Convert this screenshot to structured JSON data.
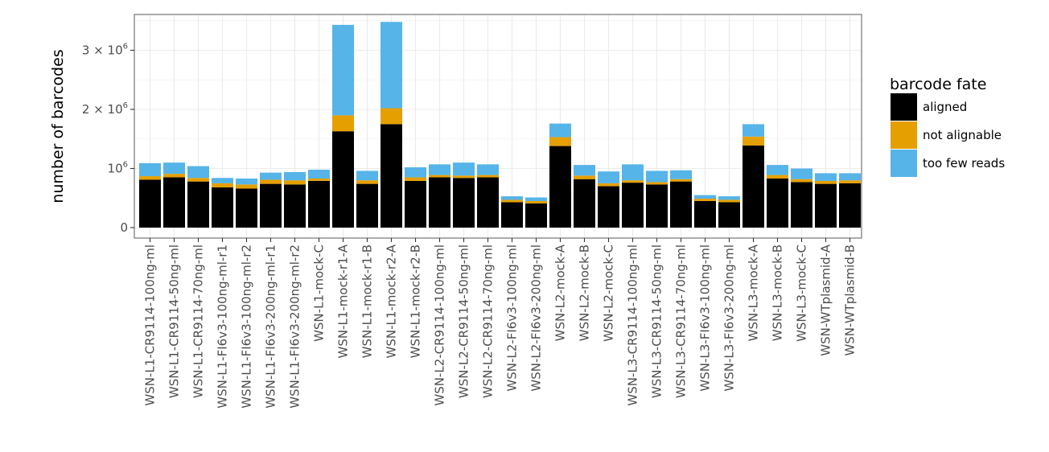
{
  "chart_data": {
    "type": "bar",
    "stacked": true,
    "title": "",
    "xlabel": "",
    "ylabel": "number of barcodes",
    "ylim": [
      0,
      3650000
    ],
    "grid": true,
    "y_ticks": [
      {
        "value": 0,
        "label": "0",
        "exp": ""
      },
      {
        "value": 1000000,
        "label": "10",
        "exp": "6"
      },
      {
        "value": 2000000,
        "label": "2 × 10",
        "exp": "6"
      },
      {
        "value": 3000000,
        "label": "3 × 10",
        "exp": "6"
      }
    ],
    "legend": {
      "title": "barcode fate",
      "position": "right",
      "entries": [
        {
          "label": "aligned",
          "color": "#000000"
        },
        {
          "label": "not alignable",
          "color": "#E69F00"
        },
        {
          "label": "too few reads",
          "color": "#56B4E9"
        }
      ]
    },
    "categories": [
      "WSN-L1-CR9114-100ng-ml",
      "WSN-L1-CR9114-50ng-ml",
      "WSN-L1-CR9114-70ng-ml",
      "WSN-L1-FI6v3-100ng-ml-r1",
      "WSN-L1-FI6v3-100ng-ml-r2",
      "WSN-L1-FI6v3-200ng-ml-r1",
      "WSN-L1-FI6v3-200ng-ml-r2",
      "WSN-L1-mock-C",
      "WSN-L1-mock-r1-A",
      "WSN-L1-mock-r1-B",
      "WSN-L1-mock-r2-A",
      "WSN-L1-mock-r2-B",
      "WSN-L2-CR9114-100ng-ml",
      "WSN-L2-CR9114-50ng-ml",
      "WSN-L2-CR9114-70ng-ml",
      "WSN-L2-FI6v3-100ng-ml",
      "WSN-L2-FI6v3-200ng-ml",
      "WSN-L2-mock-A",
      "WSN-L2-mock-B",
      "WSN-L2-mock-C",
      "WSN-L3-CR9114-100ng-ml",
      "WSN-L3-CR9114-50ng-ml",
      "WSN-L3-CR9114-70ng-ml",
      "WSN-L3-FI6v3-100ng-ml",
      "WSN-L3-FI6v3-200ng-ml",
      "WSN-L3-mock-A",
      "WSN-L3-mock-B",
      "WSN-L3-mock-C",
      "WSN-WTplasmid-A",
      "WSN-WTplasmid-B"
    ],
    "series": [
      {
        "name": "aligned",
        "color": "#000000",
        "values": [
          810000,
          850000,
          780000,
          680000,
          660000,
          740000,
          730000,
          790000,
          1630000,
          740000,
          1750000,
          790000,
          850000,
          840000,
          850000,
          430000,
          410000,
          1380000,
          820000,
          700000,
          760000,
          730000,
          780000,
          450000,
          430000,
          1390000,
          830000,
          770000,
          740000,
          750000
        ]
      },
      {
        "name": "not alignable",
        "color": "#E69F00",
        "values": [
          60000,
          60000,
          60000,
          70000,
          70000,
          70000,
          70000,
          40000,
          270000,
          60000,
          270000,
          60000,
          40000,
          40000,
          40000,
          40000,
          40000,
          150000,
          60000,
          50000,
          40000,
          40000,
          40000,
          40000,
          40000,
          150000,
          60000,
          50000,
          50000,
          50000
        ]
      },
      {
        "name": "too few reads",
        "color": "#56B4E9",
        "values": [
          220000,
          190000,
          200000,
          90000,
          100000,
          120000,
          140000,
          150000,
          1530000,
          160000,
          1460000,
          170000,
          180000,
          220000,
          180000,
          60000,
          60000,
          230000,
          180000,
          200000,
          270000,
          190000,
          150000,
          60000,
          60000,
          210000,
          170000,
          180000,
          130000,
          120000
        ]
      }
    ]
  }
}
